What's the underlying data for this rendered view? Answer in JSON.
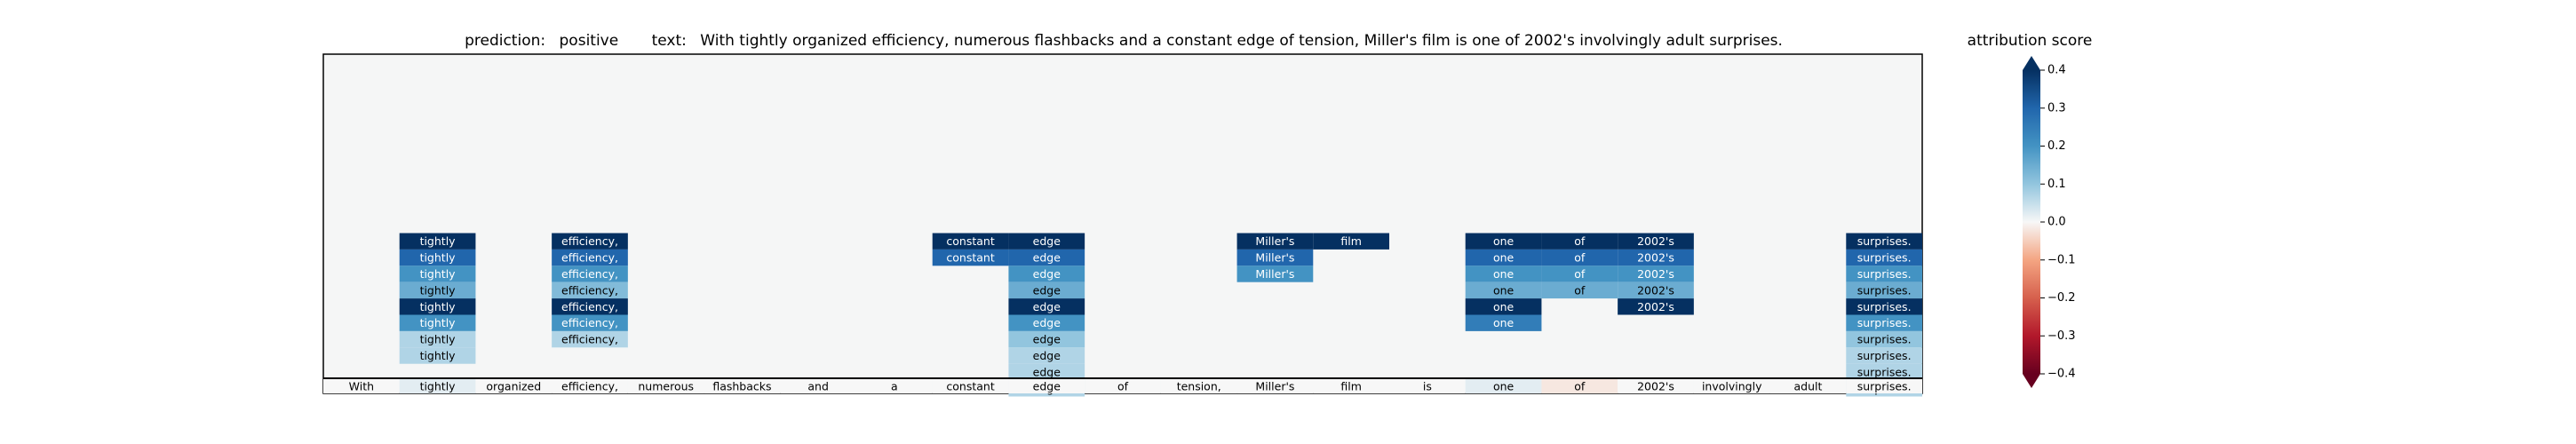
{
  "chart_data": {
    "type": "heatmap",
    "title_prediction_label": "prediction:",
    "title_prediction_value": "positive",
    "title_text_label": "text:",
    "title_text_value": "With tightly organized efficiency, numerous flashbacks and a constant edge of tension, Miller's film is one of 2002's involvingly adult surprises.",
    "tokens": [
      "With",
      "tightly",
      "organized",
      "efficiency,",
      "numerous",
      "flashbacks",
      "and",
      "a",
      "constant",
      "edge",
      "of",
      "tension,",
      "Miller's",
      "film",
      "is",
      "one",
      "of",
      "2002's",
      "involvingly",
      "adult",
      "surprises."
    ],
    "bottom_row_scores": [
      0.0,
      0.02,
      0.0,
      0.0,
      0.0,
      0.0,
      0.0,
      0.0,
      0.0,
      0.0,
      0.0,
      0.0,
      0.0,
      0.0,
      0.0,
      0.02,
      -0.02,
      0.0,
      0.0,
      0.0,
      0.0
    ],
    "columns": [
      {
        "token": "tightly",
        "index": 1,
        "scores": [
          0.4,
          0.3,
          0.2,
          0.15,
          0.4,
          0.2,
          0.07,
          0.07
        ]
      },
      {
        "token": "efficiency,",
        "index": 3,
        "scores": [
          0.4,
          0.3,
          0.2,
          0.12,
          0.4,
          0.2,
          0.07
        ]
      },
      {
        "token": "constant",
        "index": 8,
        "scores": [
          0.4,
          0.3
        ]
      },
      {
        "token": "edge",
        "index": 9,
        "scores": [
          0.4,
          0.3,
          0.2,
          0.15,
          0.4,
          0.2,
          0.1,
          0.07,
          0.07,
          0.07
        ]
      },
      {
        "token": "Miller's",
        "index": 12,
        "scores": [
          0.4,
          0.3,
          0.2
        ]
      },
      {
        "token": "film",
        "index": 13,
        "scores": [
          0.4
        ]
      },
      {
        "token": "one",
        "index": 15,
        "scores": [
          0.4,
          0.3,
          0.2,
          0.15,
          0.4,
          0.25
        ]
      },
      {
        "token": "of",
        "index": 16,
        "scores": [
          0.4,
          0.3,
          0.2,
          0.15
        ]
      },
      {
        "token": "2002's",
        "index": 17,
        "scores": [
          0.4,
          0.3,
          0.2,
          0.15,
          0.4
        ]
      },
      {
        "token": "surprises.",
        "index": 20,
        "scores": [
          0.4,
          0.3,
          0.2,
          0.15,
          0.4,
          0.2,
          0.1,
          0.07,
          0.07,
          0.07
        ]
      }
    ],
    "colorbar": {
      "label": "attribution score",
      "range": [
        -0.4,
        0.4
      ],
      "ticks": [
        -0.4,
        -0.3,
        -0.2,
        -0.1,
        0.0,
        0.1,
        0.2,
        0.3,
        0.4
      ],
      "tick_labels": [
        "−0.4",
        "−0.3",
        "−0.2",
        "−0.1",
        "0.0",
        "0.1",
        "0.2",
        "0.3",
        "0.4"
      ],
      "colormap": "RdBu",
      "extend": "both"
    },
    "colors": {
      "background": "#f5f6f6",
      "strong_positive": "#0b3a6e",
      "strong_negative": "#7b0a22",
      "neutral": "#f7f7f7"
    }
  }
}
